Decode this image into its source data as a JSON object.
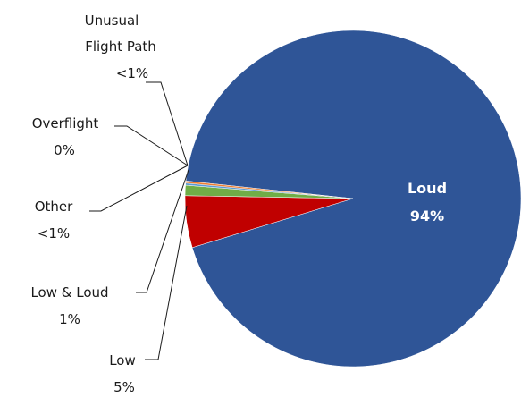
{
  "chart_data": {
    "type": "pie",
    "title": "",
    "slices": [
      {
        "label": "Loud",
        "value": 94,
        "display": "94%",
        "color": "#2F5597"
      },
      {
        "label": "Low",
        "value": 5,
        "display": "5%",
        "color": "#C00000"
      },
      {
        "label": "Low & Loud",
        "value": 1,
        "display": "1%",
        "color": "#70AD47"
      },
      {
        "label": "Other",
        "value": 0.2,
        "display": "<1%",
        "color": "#5B9BD5"
      },
      {
        "label": "Overflight",
        "value": 0,
        "display": "0%",
        "color": "#7F7F7F"
      },
      {
        "label": "Unusual Flight Path",
        "value": 0.2,
        "display": "<1%",
        "color": "#ED7D31"
      }
    ],
    "labels": {
      "unusual_line1": "Unusual",
      "unusual_line2": "Flight Path",
      "unusual_value": "<1%",
      "overflight_name": "Overflight",
      "overflight_value": "0%",
      "other_name": "Other",
      "other_value": "<1%",
      "lowloud_name": "Low & Loud",
      "lowloud_value": "1%",
      "low_name": "Low",
      "low_value": "5%",
      "loud_name": "Loud",
      "loud_value": "94%"
    }
  }
}
